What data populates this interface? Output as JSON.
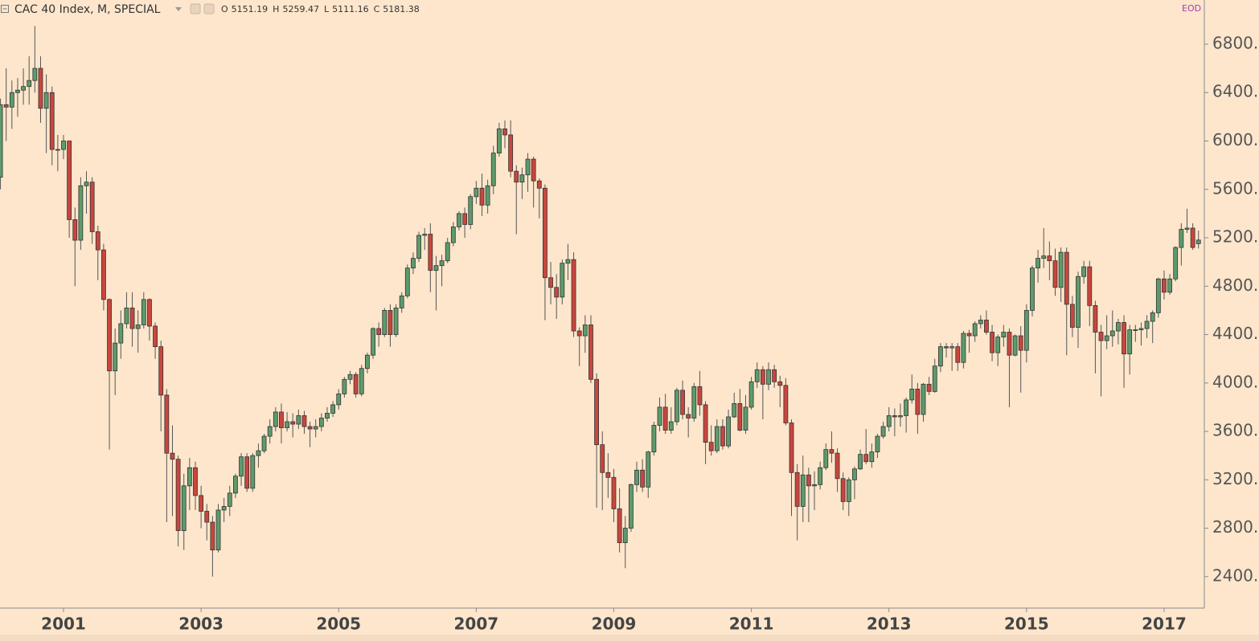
{
  "chart_data": {
    "type": "candlestick",
    "title": "CAC 40 Index, M, SPECIAL",
    "source_badge": "EOD",
    "ohlc_letters": [
      "O",
      "H",
      "L",
      "C"
    ],
    "categories": [
      null,
      null,
      null,
      null,
      null,
      null,
      null,
      null,
      null,
      null,
      null,
      "2001",
      null,
      null,
      null,
      null,
      null,
      null,
      null,
      null,
      null,
      null,
      null,
      null,
      null,
      null,
      null,
      null,
      null,
      null,
      null,
      null,
      null,
      null,
      null,
      "2003",
      null,
      null,
      null,
      null,
      null,
      null,
      null,
      null,
      null,
      null,
      null,
      null,
      null,
      null,
      null,
      null,
      null,
      null,
      null,
      null,
      null,
      null,
      null,
      "2005",
      null,
      null,
      null,
      null,
      null,
      null,
      null,
      null,
      null,
      null,
      null,
      null,
      null,
      null,
      null,
      null,
      null,
      null,
      null,
      null,
      null,
      null,
      null,
      "2007",
      null,
      null,
      null,
      null,
      null,
      null,
      null,
      null,
      null,
      null,
      null,
      null,
      null,
      null,
      null,
      null,
      null,
      null,
      null,
      null,
      null,
      null,
      null,
      "2009",
      null,
      null,
      null,
      null,
      null,
      null,
      null,
      null,
      null,
      null,
      null,
      null,
      null,
      null,
      null,
      null,
      null,
      null,
      null,
      null,
      null,
      null,
      null,
      "2011",
      null,
      null,
      null,
      null,
      null,
      null,
      null,
      null,
      null,
      null,
      null,
      null,
      null,
      null,
      null,
      null,
      null,
      null,
      null,
      null,
      null,
      null,
      null,
      "2013",
      null,
      null,
      null,
      null,
      null,
      null,
      null,
      null,
      null,
      null,
      null,
      null,
      null,
      null,
      null,
      null,
      null,
      null,
      null,
      null,
      null,
      null,
      null,
      "2015",
      null,
      null,
      null,
      null,
      null,
      null,
      null,
      null,
      null,
      null,
      null,
      null,
      null,
      null,
      null,
      null,
      null,
      null,
      null,
      null,
      null,
      null,
      null,
      "2017",
      null,
      null,
      null,
      null,
      null,
      null
    ],
    "open": [
      5700,
      6300,
      6280,
      6400,
      6420,
      6450,
      6500,
      6600,
      6270,
      6400,
      5930,
      5930,
      6000,
      5350,
      5180,
      5630,
      5660,
      5250,
      5100,
      4690,
      4100,
      4330,
      4490,
      4620,
      4450,
      4480,
      4690,
      4470,
      4300,
      3900,
      3420,
      3370,
      2780,
      3150,
      3300,
      3070,
      2940,
      2850,
      2620,
      2950,
      2980,
      3090,
      3230,
      3390,
      3130,
      3400,
      3440,
      3560,
      3640,
      3760,
      3630,
      3680,
      3660,
      3730,
      3640,
      3620,
      3640,
      3710,
      3750,
      3820,
      3910,
      4030,
      4070,
      3910,
      4120,
      4230,
      4450,
      4400,
      4600,
      4400,
      4620,
      4720,
      4950,
      5030,
      5220,
      5230,
      4930,
      4970,
      5010,
      5160,
      5290,
      5400,
      5310,
      5540,
      5610,
      5470,
      5630,
      5900,
      6100,
      6050,
      5750,
      5660,
      5720,
      5850,
      5670,
      5610,
      4870,
      4790,
      4710,
      4990,
      5020,
      4430,
      4390,
      4480,
      4030,
      3490,
      3260,
      3220,
      2960,
      2680,
      2800,
      3160,
      3280,
      3140,
      3430,
      3650,
      3800,
      3610,
      3680,
      3940,
      3740,
      3710,
      3970,
      3820,
      3510,
      3440,
      3640,
      3480,
      3720,
      3830,
      3610,
      3800,
      4010,
      4110,
      3990,
      4110,
      4010,
      3980,
      3670,
      3260,
      2980,
      3240,
      3150,
      3160,
      3300,
      3450,
      3420,
      3210,
      3020,
      3200,
      3290,
      3410,
      3350,
      3430,
      3560,
      3640,
      3730,
      3720,
      3730,
      3860,
      3950,
      3740,
      3990,
      3930,
      4140,
      4300,
      4290,
      4300,
      4170,
      4410,
      4390,
      4490,
      4520,
      4420,
      4250,
      4380,
      4420,
      4230,
      4390,
      4270,
      4600,
      4950,
      5030,
      5050,
      5010,
      4790,
      5080,
      4650,
      4460,
      4880,
      4960,
      4640,
      4420,
      4350,
      4390,
      4430,
      4500,
      4240,
      4440,
      4440,
      4450,
      4510,
      4580,
      4860,
      4750,
      4860,
      5120,
      5270,
      5280,
      5151.19
    ],
    "high": [
      6350,
      6600,
      6500,
      6520,
      6600,
      6700,
      6950,
      6700,
      6550,
      6450,
      6050,
      6050,
      6000,
      5450,
      5700,
      5750,
      5700,
      5300,
      5150,
      4700,
      4450,
      4600,
      4750,
      4750,
      4600,
      4750,
      4700,
      4500,
      4350,
      3950,
      3650,
      3400,
      3250,
      3380,
      3350,
      3150,
      3000,
      2900,
      3000,
      3050,
      3150,
      3250,
      3420,
      3420,
      3420,
      3500,
      3580,
      3700,
      3800,
      3830,
      3760,
      3750,
      3780,
      3770,
      3680,
      3700,
      3750,
      3800,
      3850,
      3950,
      4050,
      4100,
      4090,
      4150,
      4250,
      4460,
      4500,
      4620,
      4650,
      4650,
      4750,
      4980,
      5080,
      5250,
      5280,
      5320,
      5050,
      5060,
      5200,
      5330,
      5420,
      5450,
      5560,
      5670,
      5730,
      5680,
      5960,
      6150,
      6170,
      6170,
      5800,
      5780,
      5900,
      5870,
      5690,
      5640,
      5000,
      4900,
      5020,
      5150,
      5080,
      4460,
      4560,
      4560,
      4080,
      3600,
      3420,
      3290,
      3130,
      2900,
      3170,
      3350,
      3370,
      3440,
      3680,
      3880,
      3910,
      3800,
      3960,
      4020,
      3800,
      4000,
      4100,
      3850,
      3650,
      3700,
      3700,
      3780,
      3920,
      3950,
      3900,
      4050,
      4170,
      4140,
      4170,
      4150,
      4060,
      4040,
      3700,
      3330,
      3400,
      3300,
      3270,
      3350,
      3500,
      3600,
      3460,
      3260,
      3220,
      3310,
      3450,
      3620,
      3500,
      3580,
      3680,
      3800,
      3790,
      3830,
      3880,
      4070,
      4000,
      4000,
      4050,
      4200,
      4330,
      4330,
      4330,
      4330,
      4430,
      4440,
      4510,
      4560,
      4600,
      4480,
      4400,
      4480,
      4450,
      4400,
      4470,
      4650,
      4970,
      5100,
      5280,
      5170,
      5110,
      5120,
      5120,
      4720,
      4920,
      5010,
      5010,
      4680,
      4480,
      4560,
      4600,
      4530,
      4560,
      4480,
      4480,
      4500,
      4560,
      4600,
      4870,
      4930,
      4900,
      5130,
      5320,
      5440,
      5320,
      5259.47
    ],
    "low": [
      5600,
      6000,
      6100,
      6200,
      6300,
      6300,
      6400,
      6150,
      5900,
      5800,
      5750,
      5850,
      5200,
      4800,
      5100,
      5400,
      5150,
      4850,
      4600,
      3450,
      3900,
      4200,
      4450,
      4300,
      4250,
      4450,
      4350,
      4200,
      3600,
      2850,
      2900,
      2650,
      2620,
      2950,
      2950,
      2800,
      2700,
      2400,
      2600,
      2850,
      2900,
      3050,
      3150,
      3100,
      3100,
      3300,
      3420,
      3500,
      3600,
      3500,
      3600,
      3550,
      3620,
      3580,
      3470,
      3550,
      3600,
      3680,
      3720,
      3780,
      3880,
      3990,
      3880,
      3890,
      4080,
      4200,
      4300,
      4380,
      4300,
      4380,
      4580,
      4700,
      4900,
      5000,
      5100,
      4750,
      4600,
      4800,
      4990,
      5130,
      5260,
      5200,
      5270,
      5480,
      5380,
      5400,
      5560,
      5870,
      5940,
      5700,
      5230,
      5520,
      5580,
      5450,
      5360,
      4520,
      4650,
      4530,
      4650,
      4850,
      4380,
      4140,
      4250,
      4000,
      2970,
      2950,
      3050,
      2850,
      2600,
      2470,
      2770,
      3100,
      3100,
      3050,
      3400,
      3600,
      3580,
      3580,
      3650,
      3700,
      3550,
      3680,
      3730,
      3330,
      3400,
      3420,
      3450,
      3460,
      3710,
      3600,
      3580,
      3780,
      3960,
      3700,
      3940,
      3960,
      3800,
      3650,
      2900,
      2700,
      2850,
      2850,
      2950,
      3120,
      3280,
      3340,
      3100,
      2950,
      2900,
      3040,
      3280,
      3330,
      3300,
      3380,
      3540,
      3600,
      3560,
      3640,
      3590,
      3830,
      3580,
      3680,
      3900,
      3920,
      4090,
      4210,
      4100,
      4100,
      4120,
      4250,
      4340,
      4450,
      4400,
      4180,
      4140,
      4300,
      3800,
      4220,
      3920,
      4170,
      4550,
      4830,
      4950,
      4850,
      4720,
      4670,
      4230,
      4380,
      4290,
      4820,
      4470,
      4080,
      3890,
      4280,
      4300,
      4320,
      3960,
      4070,
      4340,
      4310,
      4370,
      4330,
      4540,
      4690,
      4730,
      4840,
      4970,
      5240,
      5100,
      5111.16
    ],
    "close": [
      6300,
      6280,
      6400,
      6420,
      6450,
      6500,
      6600,
      6270,
      6400,
      5930,
      5930,
      6000,
      5350,
      5180,
      5630,
      5660,
      5250,
      5100,
      4690,
      4100,
      4330,
      4490,
      4620,
      4450,
      4480,
      4690,
      4470,
      4300,
      3900,
      3420,
      3370,
      2780,
      3150,
      3300,
      3070,
      2940,
      2850,
      2620,
      2950,
      2980,
      3090,
      3230,
      3390,
      3130,
      3400,
      3440,
      3560,
      3640,
      3760,
      3630,
      3680,
      3660,
      3730,
      3640,
      3620,
      3640,
      3710,
      3750,
      3820,
      3910,
      4030,
      4070,
      3910,
      4120,
      4230,
      4450,
      4400,
      4600,
      4400,
      4620,
      4720,
      4950,
      5030,
      5220,
      5230,
      4930,
      4970,
      5010,
      5160,
      5290,
      5400,
      5310,
      5540,
      5610,
      5470,
      5630,
      5900,
      6100,
      6050,
      5750,
      5660,
      5720,
      5850,
      5670,
      5610,
      4870,
      4790,
      4710,
      4990,
      5020,
      4430,
      4390,
      4480,
      4030,
      3490,
      3260,
      3220,
      2960,
      2680,
      2800,
      3160,
      3280,
      3140,
      3430,
      3650,
      3800,
      3610,
      3680,
      3940,
      3740,
      3710,
      3970,
      3820,
      3510,
      3440,
      3640,
      3480,
      3720,
      3830,
      3610,
      3800,
      4010,
      4110,
      3990,
      4110,
      4010,
      3980,
      3670,
      3260,
      2980,
      3240,
      3150,
      3160,
      3300,
      3450,
      3420,
      3210,
      3020,
      3200,
      3290,
      3410,
      3350,
      3430,
      3560,
      3640,
      3730,
      3720,
      3730,
      3860,
      3950,
      3740,
      3990,
      3930,
      4140,
      4300,
      4290,
      4300,
      4170,
      4410,
      4390,
      4490,
      4520,
      4420,
      4250,
      4380,
      4420,
      4230,
      4390,
      4270,
      4600,
      4950,
      5030,
      5050,
      5010,
      4790,
      5080,
      4650,
      4460,
      4880,
      4960,
      4640,
      4420,
      4350,
      4390,
      4430,
      4500,
      4240,
      4440,
      4440,
      4450,
      4510,
      4580,
      4860,
      4750,
      4860,
      5120,
      5270,
      5280,
      5120,
      5181.38
    ],
    "up_color": "#5d9b6b",
    "down_color": "#c9463d",
    "ylim": [
      2140,
      7165
    ],
    "yticks": [
      {
        "value": 2400,
        "label": "2400.0"
      },
      {
        "value": 2800,
        "label": "2800.0"
      },
      {
        "value": 3200,
        "label": "3200.0"
      },
      {
        "value": 3600,
        "label": "3600.0"
      },
      {
        "value": 4000,
        "label": "4000.0"
      },
      {
        "value": 4400,
        "label": "4400.0"
      },
      {
        "value": 4800,
        "label": "4800.0"
      },
      {
        "value": 5200,
        "label": "5200.0"
      },
      {
        "value": 5600,
        "label": "5600.0"
      },
      {
        "value": 6000,
        "label": "6000.0"
      },
      {
        "value": 6400,
        "label": "6400.0"
      },
      {
        "value": 6800,
        "label": "6800.0"
      }
    ],
    "grid": false
  }
}
